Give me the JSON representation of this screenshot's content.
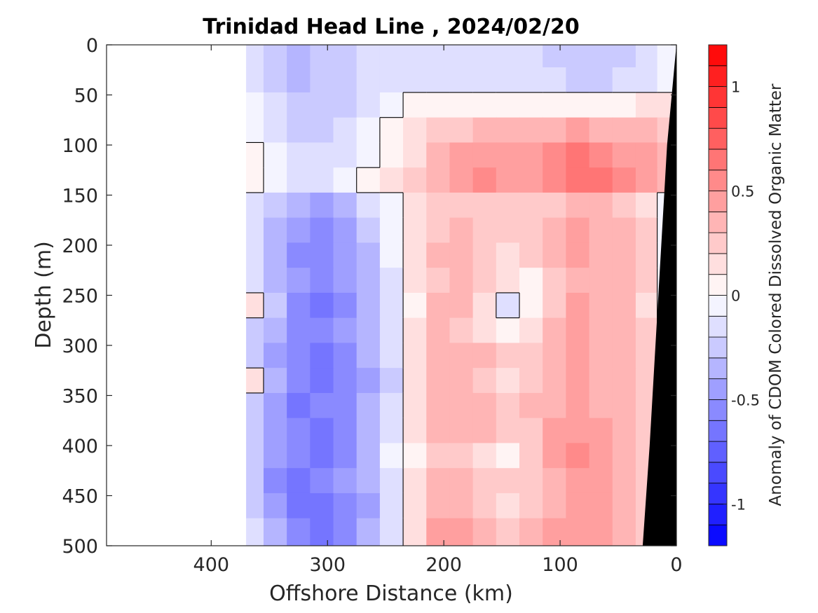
{
  "chart_data": {
    "type": "heatmap",
    "title": "Trinidad Head Line , 2024/02/20",
    "xlabel": "Offshore Distance (km)",
    "ylabel": "Depth (m)",
    "colorbar_label": "Anomaly of CDOM Colored Dissolved Organic Matter",
    "x_reversed": true,
    "y_reversed": true,
    "xlim": [
      0,
      490
    ],
    "ylim": [
      0,
      500
    ],
    "clim": [
      -1.2,
      1.2
    ],
    "x_ticks": [
      400,
      300,
      200,
      100,
      0
    ],
    "y_ticks": [
      0,
      50,
      100,
      150,
      200,
      250,
      300,
      350,
      400,
      450,
      500
    ],
    "colorbar_ticks": [
      1,
      0.5,
      0,
      -0.5,
      -1
    ],
    "colorbar_levels": 24,
    "colorbar_colors": {
      "negative": "#0000ff",
      "zero": "#ffffff",
      "positive": "#ff0000"
    },
    "no_data_color": "#ffffff",
    "bathymetry_color": "#000000",
    "data_offshore_limit_km": 370,
    "grid_x_km": [
      365,
      345,
      325,
      305,
      285,
      265,
      245,
      225,
      205,
      185,
      165,
      145,
      125,
      105,
      85,
      65,
      45,
      25,
      8
    ],
    "grid_depth_m": [
      10,
      35,
      60,
      85,
      110,
      135,
      160,
      185,
      210,
      235,
      260,
      285,
      310,
      335,
      360,
      385,
      410,
      435,
      460,
      485
    ],
    "grid_values": [
      [
        -0.15,
        -0.25,
        -0.35,
        -0.3,
        -0.25,
        -0.2,
        -0.2,
        -0.2,
        -0.2,
        -0.2,
        -0.2,
        -0.2,
        -0.2,
        -0.25,
        -0.25,
        -0.25,
        -0.25,
        -0.15,
        -0.05
      ],
      [
        -0.15,
        -0.25,
        -0.35,
        -0.3,
        -0.25,
        -0.2,
        -0.15,
        -0.15,
        -0.15,
        -0.15,
        -0.15,
        -0.15,
        -0.15,
        -0.2,
        -0.25,
        -0.25,
        -0.2,
        -0.15,
        -0.05
      ],
      [
        -0.1,
        -0.2,
        -0.3,
        -0.3,
        -0.25,
        -0.15,
        -0.05,
        0.0,
        0.05,
        0.05,
        0.05,
        0.05,
        0.05,
        0.05,
        0.05,
        0.05,
        0.05,
        0.1,
        0.15
      ],
      [
        -0.1,
        -0.15,
        -0.25,
        -0.25,
        -0.2,
        -0.1,
        0.0,
        0.1,
        0.2,
        0.25,
        0.3,
        0.3,
        0.3,
        0.35,
        0.4,
        0.35,
        0.3,
        0.3,
        0.25
      ],
      [
        0.0,
        -0.1,
        -0.2,
        -0.2,
        -0.15,
        -0.05,
        0.05,
        0.15,
        0.3,
        0.4,
        0.45,
        0.4,
        0.4,
        0.5,
        0.6,
        0.55,
        0.45,
        0.4,
        0.3
      ],
      [
        0.0,
        -0.1,
        -0.15,
        -0.15,
        -0.1,
        0.0,
        0.1,
        0.2,
        0.35,
        0.45,
        0.5,
        0.45,
        0.45,
        0.55,
        0.65,
        0.6,
        0.5,
        0.45,
        0.35
      ],
      [
        -0.15,
        -0.3,
        -0.4,
        -0.45,
        -0.35,
        -0.2,
        -0.05,
        0.15,
        0.2,
        0.25,
        0.25,
        0.2,
        0.2,
        0.25,
        0.35,
        0.3,
        0.25,
        0.15,
        -0.1
      ],
      [
        -0.2,
        -0.35,
        -0.5,
        -0.55,
        -0.45,
        -0.3,
        -0.1,
        0.15,
        0.25,
        0.3,
        0.25,
        0.25,
        0.25,
        0.3,
        0.4,
        0.35,
        0.3,
        0.2,
        -0.1
      ],
      [
        -0.2,
        -0.35,
        -0.55,
        -0.6,
        -0.5,
        -0.35,
        -0.1,
        0.15,
        0.3,
        0.3,
        0.2,
        0.15,
        0.2,
        0.3,
        0.4,
        0.35,
        0.3,
        0.2,
        -0.1
      ],
      [
        -0.2,
        -0.35,
        -0.5,
        -0.55,
        -0.5,
        -0.35,
        -0.15,
        0.1,
        0.25,
        0.3,
        0.25,
        0.1,
        0.05,
        0.25,
        0.35,
        0.35,
        0.3,
        0.2,
        -0.05
      ],
      [
        0.1,
        -0.3,
        -0.55,
        -0.7,
        -0.6,
        -0.4,
        -0.2,
        0.05,
        0.3,
        0.3,
        0.1,
        -0.2,
        0.0,
        0.2,
        0.45,
        0.35,
        0.3,
        0.15,
        -0.05
      ],
      [
        -0.25,
        -0.4,
        -0.55,
        -0.6,
        -0.5,
        -0.35,
        -0.15,
        0.1,
        0.3,
        0.25,
        0.1,
        0.05,
        0.15,
        0.3,
        0.4,
        0.35,
        0.3,
        0.2,
        -0.1
      ],
      [
        -0.3,
        -0.45,
        -0.6,
        -0.65,
        -0.55,
        -0.4,
        -0.2,
        0.15,
        0.35,
        0.35,
        0.3,
        0.2,
        0.2,
        0.35,
        0.45,
        0.35,
        0.3,
        0.2,
        -0.1
      ],
      [
        0.1,
        -0.4,
        -0.6,
        -0.7,
        -0.6,
        -0.45,
        -0.25,
        0.1,
        0.3,
        0.3,
        0.25,
        0.1,
        0.25,
        0.35,
        0.4,
        0.35,
        0.3,
        0.2,
        -0.2
      ],
      [
        -0.3,
        -0.5,
        -0.65,
        -0.6,
        -0.55,
        -0.4,
        -0.2,
        0.1,
        0.3,
        0.35,
        0.3,
        0.25,
        0.3,
        0.35,
        0.4,
        0.35,
        0.3,
        0.25,
        -0.1
      ],
      [
        -0.3,
        -0.45,
        -0.6,
        -0.65,
        -0.55,
        -0.4,
        -0.15,
        0.1,
        0.35,
        0.35,
        0.3,
        0.2,
        0.2,
        0.4,
        0.45,
        0.4,
        0.3,
        0.25,
        -0.05
      ],
      [
        -0.25,
        -0.45,
        -0.6,
        -0.65,
        -0.55,
        -0.4,
        -0.1,
        0.05,
        0.25,
        0.2,
        0.15,
        0.0,
        0.2,
        0.4,
        0.55,
        0.45,
        0.35,
        0.25,
        0.0
      ],
      [
        -0.3,
        -0.55,
        -0.65,
        -0.6,
        -0.5,
        -0.35,
        -0.15,
        0.1,
        0.3,
        0.3,
        0.25,
        0.2,
        0.25,
        0.35,
        0.45,
        0.4,
        0.35,
        0.25,
        0.0
      ],
      [
        -0.3,
        -0.5,
        -0.65,
        -0.7,
        -0.6,
        -0.45,
        -0.2,
        0.1,
        0.35,
        0.35,
        0.25,
        0.15,
        0.2,
        0.35,
        0.45,
        0.4,
        0.35,
        0.25,
        0.0
      ],
      [
        -0.2,
        -0.4,
        -0.6,
        -0.65,
        -0.55,
        -0.4,
        -0.15,
        0.15,
        0.4,
        0.45,
        0.35,
        0.25,
        0.3,
        0.4,
        0.45,
        0.4,
        0.35,
        0.25,
        0.0
      ]
    ],
    "bathymetry_km_at_depth": {
      "depths": [
        0,
        100,
        200,
        300,
        400,
        500
      ],
      "distance_km": [
        0,
        8,
        13,
        18,
        23,
        29
      ]
    }
  }
}
